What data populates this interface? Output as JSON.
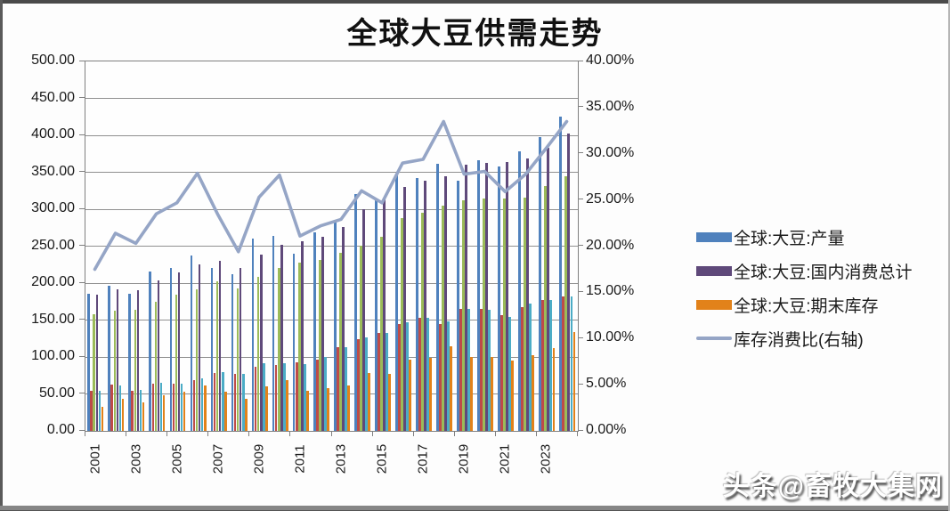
{
  "title": "全球大豆供需走势",
  "watermark": "头条@畜牧大集网",
  "colors": {
    "grid": "#909090",
    "axis_text": "#1a1a1a",
    "bar_blue": "#4F81BD",
    "bar_red": "#BE4B48",
    "bar_green": "#9BBB59",
    "bar_purple": "#5F497A",
    "bar_teal": "#4BACC6",
    "bar_orange": "#E2821A",
    "line": "#95A5C6"
  },
  "legend": {
    "items": [
      {
        "label": "全球:大豆:产量",
        "type": "bar",
        "color": "#4F81BD"
      },
      {
        "label": "全球:大豆:国内消费总计",
        "type": "bar",
        "color": "#5F497A"
      },
      {
        "label": "全球:大豆:期末库存",
        "type": "bar",
        "color": "#E2821A"
      },
      {
        "label": "库存消费比(右轴)",
        "type": "line",
        "color": "#95A5C6"
      }
    ]
  },
  "chart_data": {
    "type": "bar",
    "subtype": "grouped-bars-with-line",
    "title": "全球大豆供需走势",
    "categories": [
      2001,
      2002,
      2003,
      2004,
      2005,
      2006,
      2007,
      2008,
      2009,
      2010,
      2011,
      2012,
      2013,
      2014,
      2015,
      2016,
      2017,
      2018,
      2019,
      2020,
      2021,
      2022,
      2023,
      2024
    ],
    "x_tick_labels": [
      "2001",
      "2003",
      "2005",
      "2007",
      "2009",
      "2011",
      "2013",
      "2015",
      "2017",
      "2019",
      "2021",
      "2023"
    ],
    "left_axis": {
      "min": 0,
      "max": 500,
      "step": 50,
      "tick_labels": [
        "500.00",
        "450.00",
        "400.00",
        "350.00",
        "300.00",
        "250.00",
        "200.00",
        "150.00",
        "100.00",
        "50.00",
        "0.00"
      ]
    },
    "right_axis": {
      "min": 0,
      "max": 40,
      "step": 5,
      "tick_labels": [
        "40.00%",
        "35.00%",
        "30.00%",
        "25.00%",
        "20.00%",
        "15.00%",
        "10.00%",
        "5.00%",
        "0.00%"
      ]
    },
    "grid": true,
    "legend_position": "right",
    "series": [
      {
        "name": "全球:大豆:产量",
        "color": "#4F81BD",
        "in_legend": true,
        "values": [
          185,
          197,
          186,
          216,
          221,
          237,
          221,
          212,
          260,
          264,
          240,
          269,
          283,
          320,
          313,
          348,
          342,
          361,
          339,
          366,
          358,
          378,
          398,
          425
        ]
      },
      {
        "name": "unlabeled-red",
        "color": "#BE4B48",
        "in_legend": false,
        "values": [
          54,
          63,
          54,
          64,
          64,
          69,
          78,
          77,
          87,
          89,
          93,
          96,
          113,
          124,
          133,
          144,
          153,
          145,
          165,
          165,
          157,
          167,
          177,
          182
        ]
      },
      {
        "name": "unlabeled-green",
        "color": "#9BBB59",
        "in_legend": false,
        "values": [
          158,
          163,
          164,
          175,
          184,
          191,
          203,
          193,
          209,
          221,
          228,
          231,
          241,
          251,
          263,
          288,
          295,
          305,
          312,
          315,
          314,
          316,
          331,
          345
        ]
      },
      {
        "name": "全球:大豆:国内消费总计",
        "color": "#5F497A",
        "in_legend": true,
        "values": [
          184,
          191,
          190,
          204,
          215,
          225,
          230,
          221,
          238,
          252,
          257,
          263,
          276,
          300,
          313,
          330,
          338,
          345,
          360,
          363,
          364,
          369,
          383,
          402
        ]
      },
      {
        "name": "unlabeled-teal",
        "color": "#4BACC6",
        "in_legend": false,
        "values": [
          54,
          61,
          56,
          65,
          64,
          71,
          79,
          77,
          91,
          92,
          90,
          100,
          113,
          126,
          132,
          147,
          153,
          148,
          165,
          164,
          154,
          172,
          177,
          182
        ]
      },
      {
        "name": "全球:大豆:期末库存",
        "color": "#E2821A",
        "in_legend": true,
        "values": [
          32,
          43,
          38,
          48,
          53,
          62,
          53,
          43,
          60,
          69,
          54,
          58,
          62,
          78,
          77,
          96,
          99,
          115,
          100,
          100,
          95,
          102,
          112,
          134
        ]
      }
    ],
    "line_series": {
      "name": "库存消费比(右轴)",
      "color": "#95A5C6",
      "axis": "right",
      "values": [
        17.4,
        21.3,
        20.2,
        23.4,
        24.6,
        27.8,
        23.3,
        19.3,
        25.2,
        27.6,
        21.0,
        22.1,
        22.8,
        25.9,
        24.6,
        28.9,
        29.3,
        33.4,
        27.7,
        28.0,
        25.8,
        27.7,
        30.5,
        33.4
      ]
    }
  }
}
